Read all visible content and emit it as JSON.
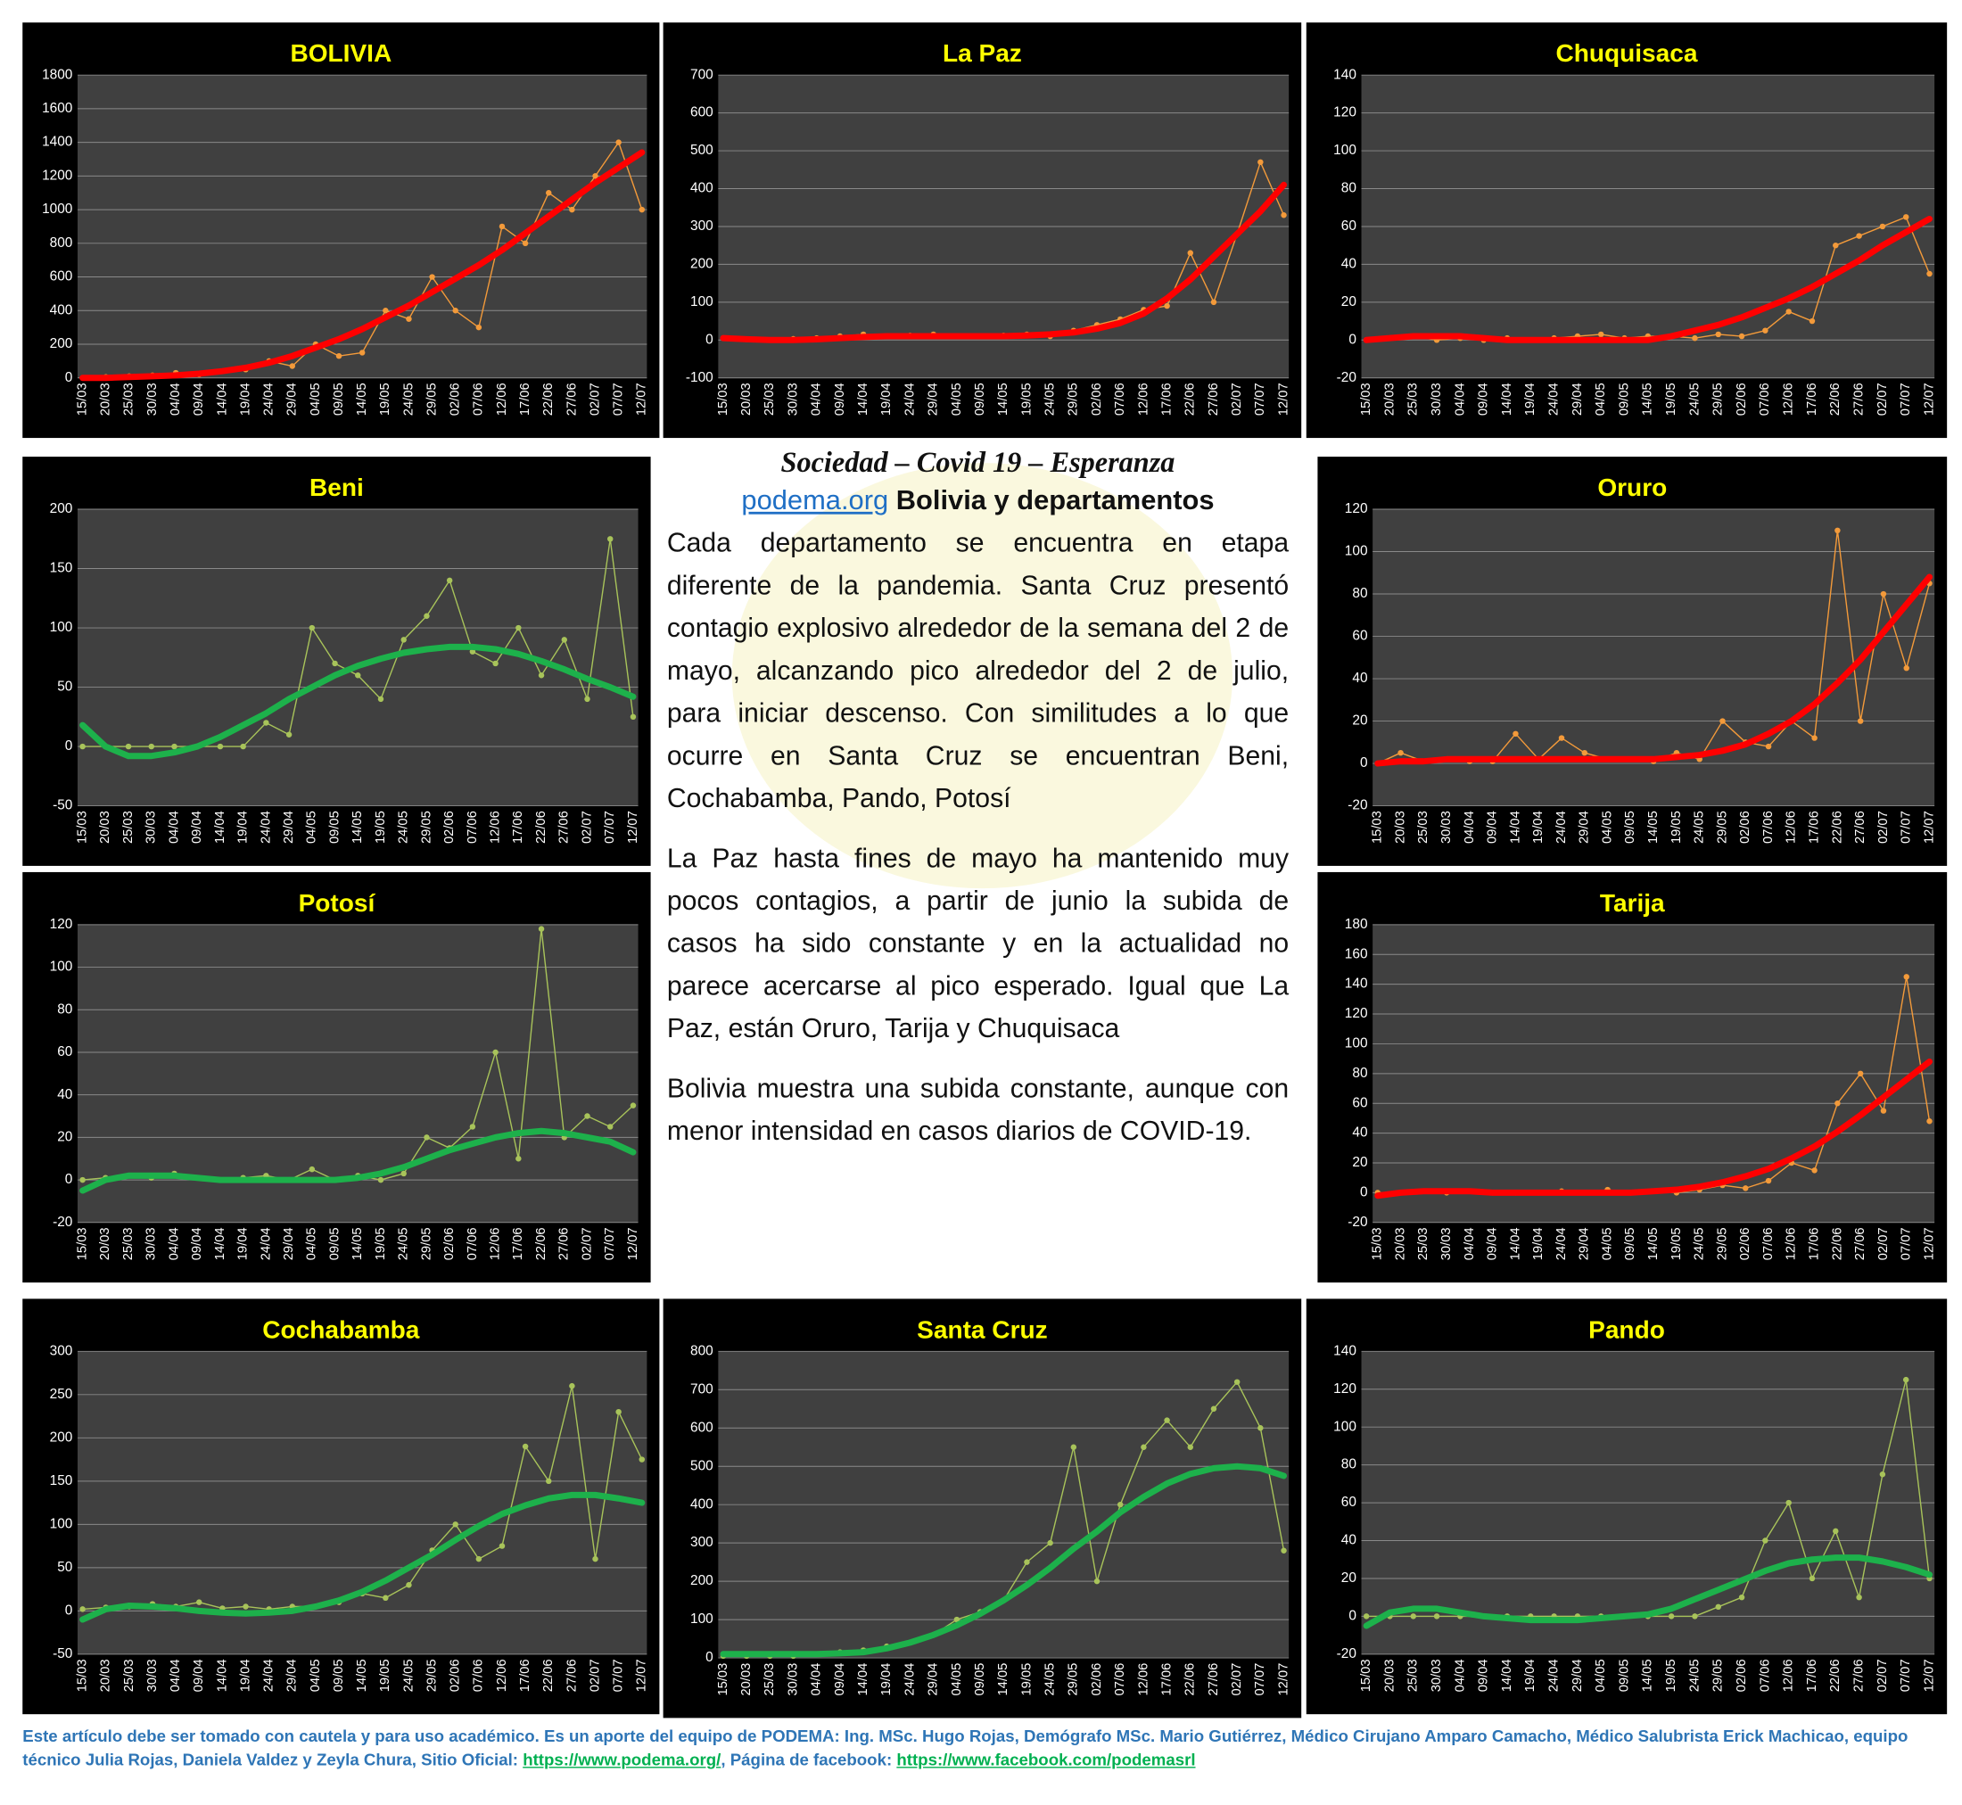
{
  "chart_data": [
    {
      "type": "line",
      "title": "BOLIVIA",
      "categories": [
        "15/03",
        "20/03",
        "25/03",
        "30/03",
        "04/04",
        "09/04",
        "14/04",
        "19/04",
        "24/04",
        "29/04",
        "04/05",
        "09/05",
        "14/05",
        "19/05",
        "24/05",
        "29/05",
        "02/06",
        "07/06",
        "12/06",
        "17/06",
        "22/06",
        "27/06",
        "02/07",
        "07/07",
        "12/07"
      ],
      "series": [
        {
          "color": "#f39a3a",
          "markers": true,
          "values": [
            0,
            5,
            10,
            15,
            30,
            20,
            40,
            50,
            100,
            70,
            200,
            130,
            150,
            400,
            350,
            600,
            400,
            300,
            900,
            800,
            1100,
            1000,
            1200,
            1400,
            1000
          ]
        },
        {
          "color": "#ff0000",
          "markers": false,
          "values": [
            0,
            0,
            5,
            10,
            15,
            25,
            40,
            60,
            90,
            130,
            180,
            230,
            290,
            360,
            430,
            510,
            590,
            670,
            760,
            860,
            960,
            1060,
            1160,
            1250,
            1340
          ]
        }
      ],
      "ylim": [
        0,
        1800
      ],
      "yticks": [
        0,
        200,
        400,
        600,
        800,
        1000,
        1200,
        1400,
        1600,
        1800
      ],
      "grid": true
    },
    {
      "type": "line",
      "title": "La Paz",
      "categories": [
        "15/03",
        "20/03",
        "25/03",
        "30/03",
        "04/04",
        "09/04",
        "14/04",
        "19/04",
        "24/04",
        "29/04",
        "04/05",
        "09/05",
        "14/05",
        "19/05",
        "24/05",
        "29/05",
        "02/06",
        "07/06",
        "12/06",
        "17/06",
        "22/06",
        "27/06",
        "02/07",
        "07/07",
        "12/07"
      ],
      "series": [
        {
          "color": "#f39a3a",
          "markers": true,
          "values": [
            5,
            2,
            0,
            3,
            5,
            10,
            15,
            10,
            12,
            15,
            10,
            10,
            12,
            15,
            10,
            25,
            40,
            55,
            80,
            90,
            230,
            100,
            280,
            470,
            330
          ]
        },
        {
          "color": "#ff0000",
          "markers": false,
          "values": [
            5,
            2,
            0,
            0,
            2,
            5,
            8,
            10,
            10,
            10,
            10,
            10,
            10,
            12,
            15,
            20,
            30,
            45,
            70,
            110,
            160,
            220,
            280,
            340,
            410
          ]
        }
      ],
      "ylim": [
        -100,
        700
      ],
      "yticks": [
        -100,
        0,
        100,
        200,
        300,
        400,
        500,
        600,
        700
      ],
      "grid": true
    },
    {
      "type": "line",
      "title": "Chuquisaca",
      "categories": [
        "15/03",
        "20/03",
        "25/03",
        "30/03",
        "04/04",
        "09/04",
        "14/04",
        "19/04",
        "24/04",
        "29/04",
        "04/05",
        "09/05",
        "14/05",
        "19/05",
        "24/05",
        "29/05",
        "02/06",
        "07/06",
        "12/06",
        "17/06",
        "22/06",
        "27/06",
        "02/07",
        "07/07",
        "12/07"
      ],
      "series": [
        {
          "color": "#f39a3a",
          "markers": true,
          "values": [
            0,
            1,
            2,
            0,
            1,
            0,
            1,
            0,
            1,
            2,
            3,
            1,
            2,
            2,
            1,
            3,
            2,
            5,
            15,
            10,
            50,
            55,
            60,
            65,
            35
          ]
        },
        {
          "color": "#ff0000",
          "markers": false,
          "values": [
            0,
            1,
            2,
            2,
            2,
            1,
            0,
            0,
            0,
            0,
            0,
            0,
            0,
            2,
            5,
            8,
            12,
            17,
            22,
            28,
            35,
            42,
            50,
            57,
            64
          ]
        }
      ],
      "ylim": [
        -20,
        140
      ],
      "yticks": [
        -20,
        0,
        20,
        40,
        60,
        80,
        100,
        120,
        140
      ],
      "grid": true
    },
    {
      "type": "line",
      "title": "Beni",
      "categories": [
        "15/03",
        "20/03",
        "25/03",
        "30/03",
        "04/04",
        "09/04",
        "14/04",
        "19/04",
        "24/04",
        "29/04",
        "04/05",
        "09/05",
        "14/05",
        "19/05",
        "24/05",
        "29/05",
        "02/06",
        "07/06",
        "12/06",
        "17/06",
        "22/06",
        "27/06",
        "02/07",
        "07/07",
        "12/07"
      ],
      "series": [
        {
          "color": "#a8c35a",
          "markers": true,
          "values": [
            0,
            0,
            0,
            0,
            0,
            0,
            0,
            0,
            20,
            10,
            100,
            70,
            60,
            40,
            90,
            110,
            140,
            80,
            70,
            100,
            60,
            90,
            40,
            175,
            25
          ]
        },
        {
          "color": "#1db14b",
          "markers": false,
          "values": [
            18,
            0,
            -8,
            -8,
            -5,
            0,
            8,
            18,
            28,
            40,
            50,
            60,
            68,
            74,
            79,
            82,
            84,
            84,
            82,
            78,
            72,
            65,
            57,
            50,
            42
          ]
        }
      ],
      "ylim": [
        -50,
        200
      ],
      "yticks": [
        -50,
        0,
        50,
        100,
        150,
        200
      ],
      "grid": true
    },
    {
      "type": "line",
      "title": "Oruro",
      "categories": [
        "15/03",
        "20/03",
        "25/03",
        "30/03",
        "04/04",
        "09/04",
        "14/04",
        "19/04",
        "24/04",
        "29/04",
        "04/05",
        "09/05",
        "14/05",
        "19/05",
        "24/05",
        "29/05",
        "02/06",
        "07/06",
        "12/06",
        "17/06",
        "22/06",
        "27/06",
        "02/07",
        "07/07",
        "12/07"
      ],
      "series": [
        {
          "color": "#f39a3a",
          "markers": true,
          "values": [
            0,
            5,
            1,
            2,
            1,
            1,
            14,
            2,
            12,
            5,
            2,
            2,
            1,
            5,
            2,
            20,
            10,
            8,
            20,
            12,
            110,
            20,
            80,
            45,
            85
          ]
        },
        {
          "color": "#ff0000",
          "markers": false,
          "values": [
            0,
            1,
            1,
            2,
            2,
            2,
            2,
            2,
            2,
            2,
            2,
            2,
            2,
            3,
            4,
            6,
            9,
            14,
            20,
            28,
            38,
            49,
            62,
            75,
            88
          ]
        }
      ],
      "ylim": [
        -20,
        120
      ],
      "yticks": [
        -20,
        0,
        20,
        40,
        60,
        80,
        100,
        120
      ],
      "grid": true
    },
    {
      "type": "line",
      "title": "Potosí",
      "categories": [
        "15/03",
        "20/03",
        "25/03",
        "30/03",
        "04/04",
        "09/04",
        "14/04",
        "19/04",
        "24/04",
        "29/04",
        "04/05",
        "09/05",
        "14/05",
        "19/05",
        "24/05",
        "29/05",
        "02/06",
        "07/06",
        "12/06",
        "17/06",
        "22/06",
        "27/06",
        "02/07",
        "07/07",
        "12/07"
      ],
      "series": [
        {
          "color": "#a8c35a",
          "markers": true,
          "values": [
            0,
            1,
            2,
            1,
            3,
            1,
            0,
            1,
            2,
            0,
            5,
            0,
            2,
            0,
            3,
            20,
            15,
            25,
            60,
            10,
            118,
            20,
            30,
            25,
            35
          ]
        },
        {
          "color": "#1db14b",
          "markers": false,
          "values": [
            -5,
            0,
            2,
            2,
            2,
            1,
            0,
            0,
            0,
            0,
            0,
            0,
            1,
            3,
            6,
            10,
            14,
            17,
            20,
            22,
            23,
            22,
            20,
            18,
            13
          ]
        }
      ],
      "ylim": [
        -20,
        120
      ],
      "yticks": [
        -20,
        0,
        20,
        40,
        60,
        80,
        100,
        120
      ],
      "grid": true
    },
    {
      "type": "line",
      "title": "Tarija",
      "categories": [
        "15/03",
        "20/03",
        "25/03",
        "30/03",
        "04/04",
        "09/04",
        "14/04",
        "19/04",
        "24/04",
        "29/04",
        "04/05",
        "09/05",
        "14/05",
        "19/05",
        "24/05",
        "29/05",
        "02/06",
        "07/06",
        "12/06",
        "17/06",
        "22/06",
        "27/06",
        "02/07",
        "07/07",
        "12/07"
      ],
      "series": [
        {
          "color": "#f39a3a",
          "markers": true,
          "values": [
            0,
            0,
            1,
            0,
            1,
            0,
            0,
            0,
            1,
            0,
            2,
            0,
            1,
            0,
            2,
            5,
            3,
            8,
            20,
            15,
            60,
            80,
            55,
            145,
            48
          ]
        },
        {
          "color": "#ff0000",
          "markers": false,
          "values": [
            -2,
            0,
            1,
            1,
            1,
            0,
            0,
            0,
            0,
            0,
            0,
            0,
            1,
            2,
            4,
            7,
            11,
            16,
            23,
            31,
            41,
            52,
            64,
            76,
            88
          ]
        }
      ],
      "ylim": [
        -20,
        180
      ],
      "yticks": [
        -20,
        0,
        20,
        40,
        60,
        80,
        100,
        120,
        140,
        160,
        180
      ],
      "grid": true
    },
    {
      "type": "line",
      "title": "Cochabamba",
      "categories": [
        "15/03",
        "20/03",
        "25/03",
        "30/03",
        "04/04",
        "09/04",
        "14/04",
        "19/04",
        "24/04",
        "29/04",
        "04/05",
        "09/05",
        "14/05",
        "19/05",
        "24/05",
        "29/05",
        "02/06",
        "07/06",
        "12/06",
        "17/06",
        "22/06",
        "27/06",
        "02/07",
        "07/07",
        "12/07"
      ],
      "series": [
        {
          "color": "#a8c35a",
          "markers": true,
          "values": [
            2,
            4,
            5,
            8,
            5,
            10,
            3,
            5,
            2,
            5,
            5,
            10,
            20,
            15,
            30,
            70,
            100,
            60,
            75,
            190,
            150,
            260,
            60,
            230,
            175
          ]
        },
        {
          "color": "#1db14b",
          "markers": false,
          "values": [
            -10,
            2,
            6,
            5,
            3,
            0,
            -2,
            -3,
            -2,
            0,
            5,
            12,
            22,
            35,
            50,
            65,
            82,
            98,
            112,
            122,
            130,
            134,
            134,
            130,
            125
          ]
        }
      ],
      "ylim": [
        -50,
        300
      ],
      "yticks": [
        -50,
        0,
        50,
        100,
        150,
        200,
        250,
        300
      ],
      "grid": true
    },
    {
      "type": "line",
      "title": "Santa Cruz",
      "categories": [
        "15/03",
        "20/03",
        "25/03",
        "30/03",
        "04/04",
        "09/04",
        "14/04",
        "19/04",
        "24/04",
        "29/04",
        "04/05",
        "09/05",
        "14/05",
        "19/05",
        "24/05",
        "29/05",
        "02/06",
        "07/06",
        "12/06",
        "17/06",
        "22/06",
        "27/06",
        "02/07",
        "07/07",
        "12/07"
      ],
      "series": [
        {
          "color": "#a8c35a",
          "markers": true,
          "values": [
            5,
            5,
            5,
            5,
            10,
            15,
            20,
            30,
            40,
            60,
            100,
            120,
            150,
            250,
            300,
            550,
            200,
            400,
            550,
            620,
            550,
            650,
            720,
            600,
            280
          ]
        },
        {
          "color": "#1db14b",
          "markers": false,
          "values": [
            10,
            10,
            10,
            10,
            10,
            12,
            15,
            25,
            40,
            60,
            85,
            115,
            150,
            190,
            235,
            285,
            330,
            380,
            420,
            455,
            480,
            495,
            500,
            495,
            475
          ]
        }
      ],
      "ylim": [
        0,
        800
      ],
      "yticks": [
        0,
        100,
        200,
        300,
        400,
        500,
        600,
        700,
        800
      ],
      "grid": true
    },
    {
      "type": "line",
      "title": "Pando",
      "categories": [
        "15/03",
        "20/03",
        "25/03",
        "30/03",
        "04/04",
        "09/04",
        "14/04",
        "19/04",
        "24/04",
        "29/04",
        "04/05",
        "09/05",
        "14/05",
        "19/05",
        "24/05",
        "29/05",
        "02/06",
        "07/06",
        "12/06",
        "17/06",
        "22/06",
        "27/06",
        "02/07",
        "07/07",
        "12/07"
      ],
      "series": [
        {
          "color": "#a8c35a",
          "markers": true,
          "values": [
            0,
            0,
            0,
            0,
            0,
            0,
            0,
            0,
            0,
            0,
            0,
            0,
            0,
            0,
            0,
            5,
            10,
            40,
            60,
            20,
            45,
            10,
            75,
            125,
            20
          ]
        },
        {
          "color": "#1db14b",
          "markers": false,
          "values": [
            -5,
            2,
            4,
            4,
            2,
            0,
            -1,
            -2,
            -2,
            -2,
            -1,
            0,
            1,
            4,
            9,
            14,
            19,
            24,
            28,
            30,
            31,
            31,
            29,
            26,
            22
          ]
        }
      ],
      "ylim": [
        -20,
        140
      ],
      "yticks": [
        -20,
        0,
        20,
        40,
        60,
        80,
        100,
        120,
        140
      ],
      "grid": true
    }
  ],
  "article": {
    "title": "Sociedad – Covid 19 – Esperanza",
    "link": "podema.org",
    "subtitle": "Bolivia y departamentos",
    "paragraphs": [
      "Cada departamento se encuentra en etapa diferente de la pandemia. Santa Cruz presentó contagio explosivo alrededor de la semana del 2 de mayo, alcanzando pico alrededor del 2 de julio, para iniciar descenso. Con similitudes a lo que ocurre en Santa Cruz se encuentran Beni, Cochabamba, Pando, Potosí",
      "La Paz hasta fines de mayo ha mantenido muy pocos contagios, a partir de junio la subida de casos ha sido constante y en la actualidad no parece acercarse al pico esperado. Igual que La Paz, están Oruro, Tarija y Chuquisaca",
      "Bolivia muestra una subida constante, aunque con menor intensidad en casos diarios de COVID-19."
    ]
  },
  "footer": {
    "text": "Este artículo debe ser tomado con cautela y para uso académico. Es un aporte del equipo de PODEMA: Ing. MSc. Hugo Rojas, Demógrafo MSc. Mario Gutiérrez, Médico Cirujano Amparo Camacho, Médico Salubrista Erick Machicao, equipo técnico Julia Rojas, Daniela Valdez y Zeyla Chura, Sitio Oficial:",
    "link1": "https://www.podema.org/",
    "text2": ", Página de facebook:",
    "link2": "https://www.facebook.com/podemasrl"
  }
}
